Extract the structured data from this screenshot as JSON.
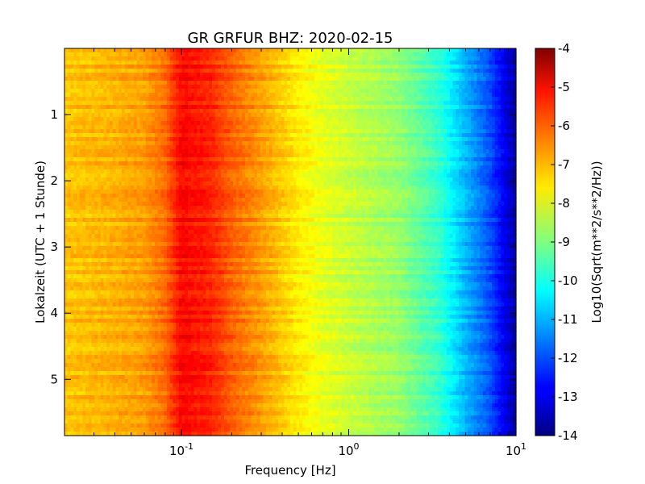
{
  "chart_data": {
    "type": "heatmap",
    "title": "GR GRFUR BHZ: 2020-02-15",
    "xlabel": "Frequency [Hz]",
    "ylabel": "Lokalzeit (UTC + 1 Stunde)",
    "x_scale": "log",
    "xlim": [
      0.02,
      10
    ],
    "ylim": [
      0,
      5.85
    ],
    "y_inverted": true,
    "xticks": [
      {
        "base": "10",
        "exp": "-1",
        "value": 0.1
      },
      {
        "base": "10",
        "exp": "0",
        "value": 1
      },
      {
        "base": "10",
        "exp": "1",
        "value": 10
      }
    ],
    "yticks": [
      "1",
      "2",
      "3",
      "4",
      "5"
    ],
    "colorbar": {
      "label": "Log10(Sqrt(m**2/s**2/Hz))",
      "range": [
        -14,
        -4
      ],
      "ticks": [
        "-4",
        "-5",
        "-6",
        "-7",
        "-8",
        "-9",
        "-10",
        "-11",
        "-12",
        "-13",
        "-14"
      ],
      "colormap": "jet"
    },
    "spectrum_profile": {
      "frequency_hz": [
        0.02,
        0.04,
        0.06,
        0.08,
        0.1,
        0.15,
        0.2,
        0.3,
        0.5,
        0.7,
        1,
        2,
        3.5,
        5,
        7,
        10
      ],
      "value": [
        -7.2,
        -7.0,
        -6.8,
        -6.3,
        -5.3,
        -5.6,
        -6.2,
        -6.8,
        -7.6,
        -8.0,
        -8.3,
        -8.8,
        -9.8,
        -11.0,
        -12.0,
        -13.7
      ]
    }
  }
}
